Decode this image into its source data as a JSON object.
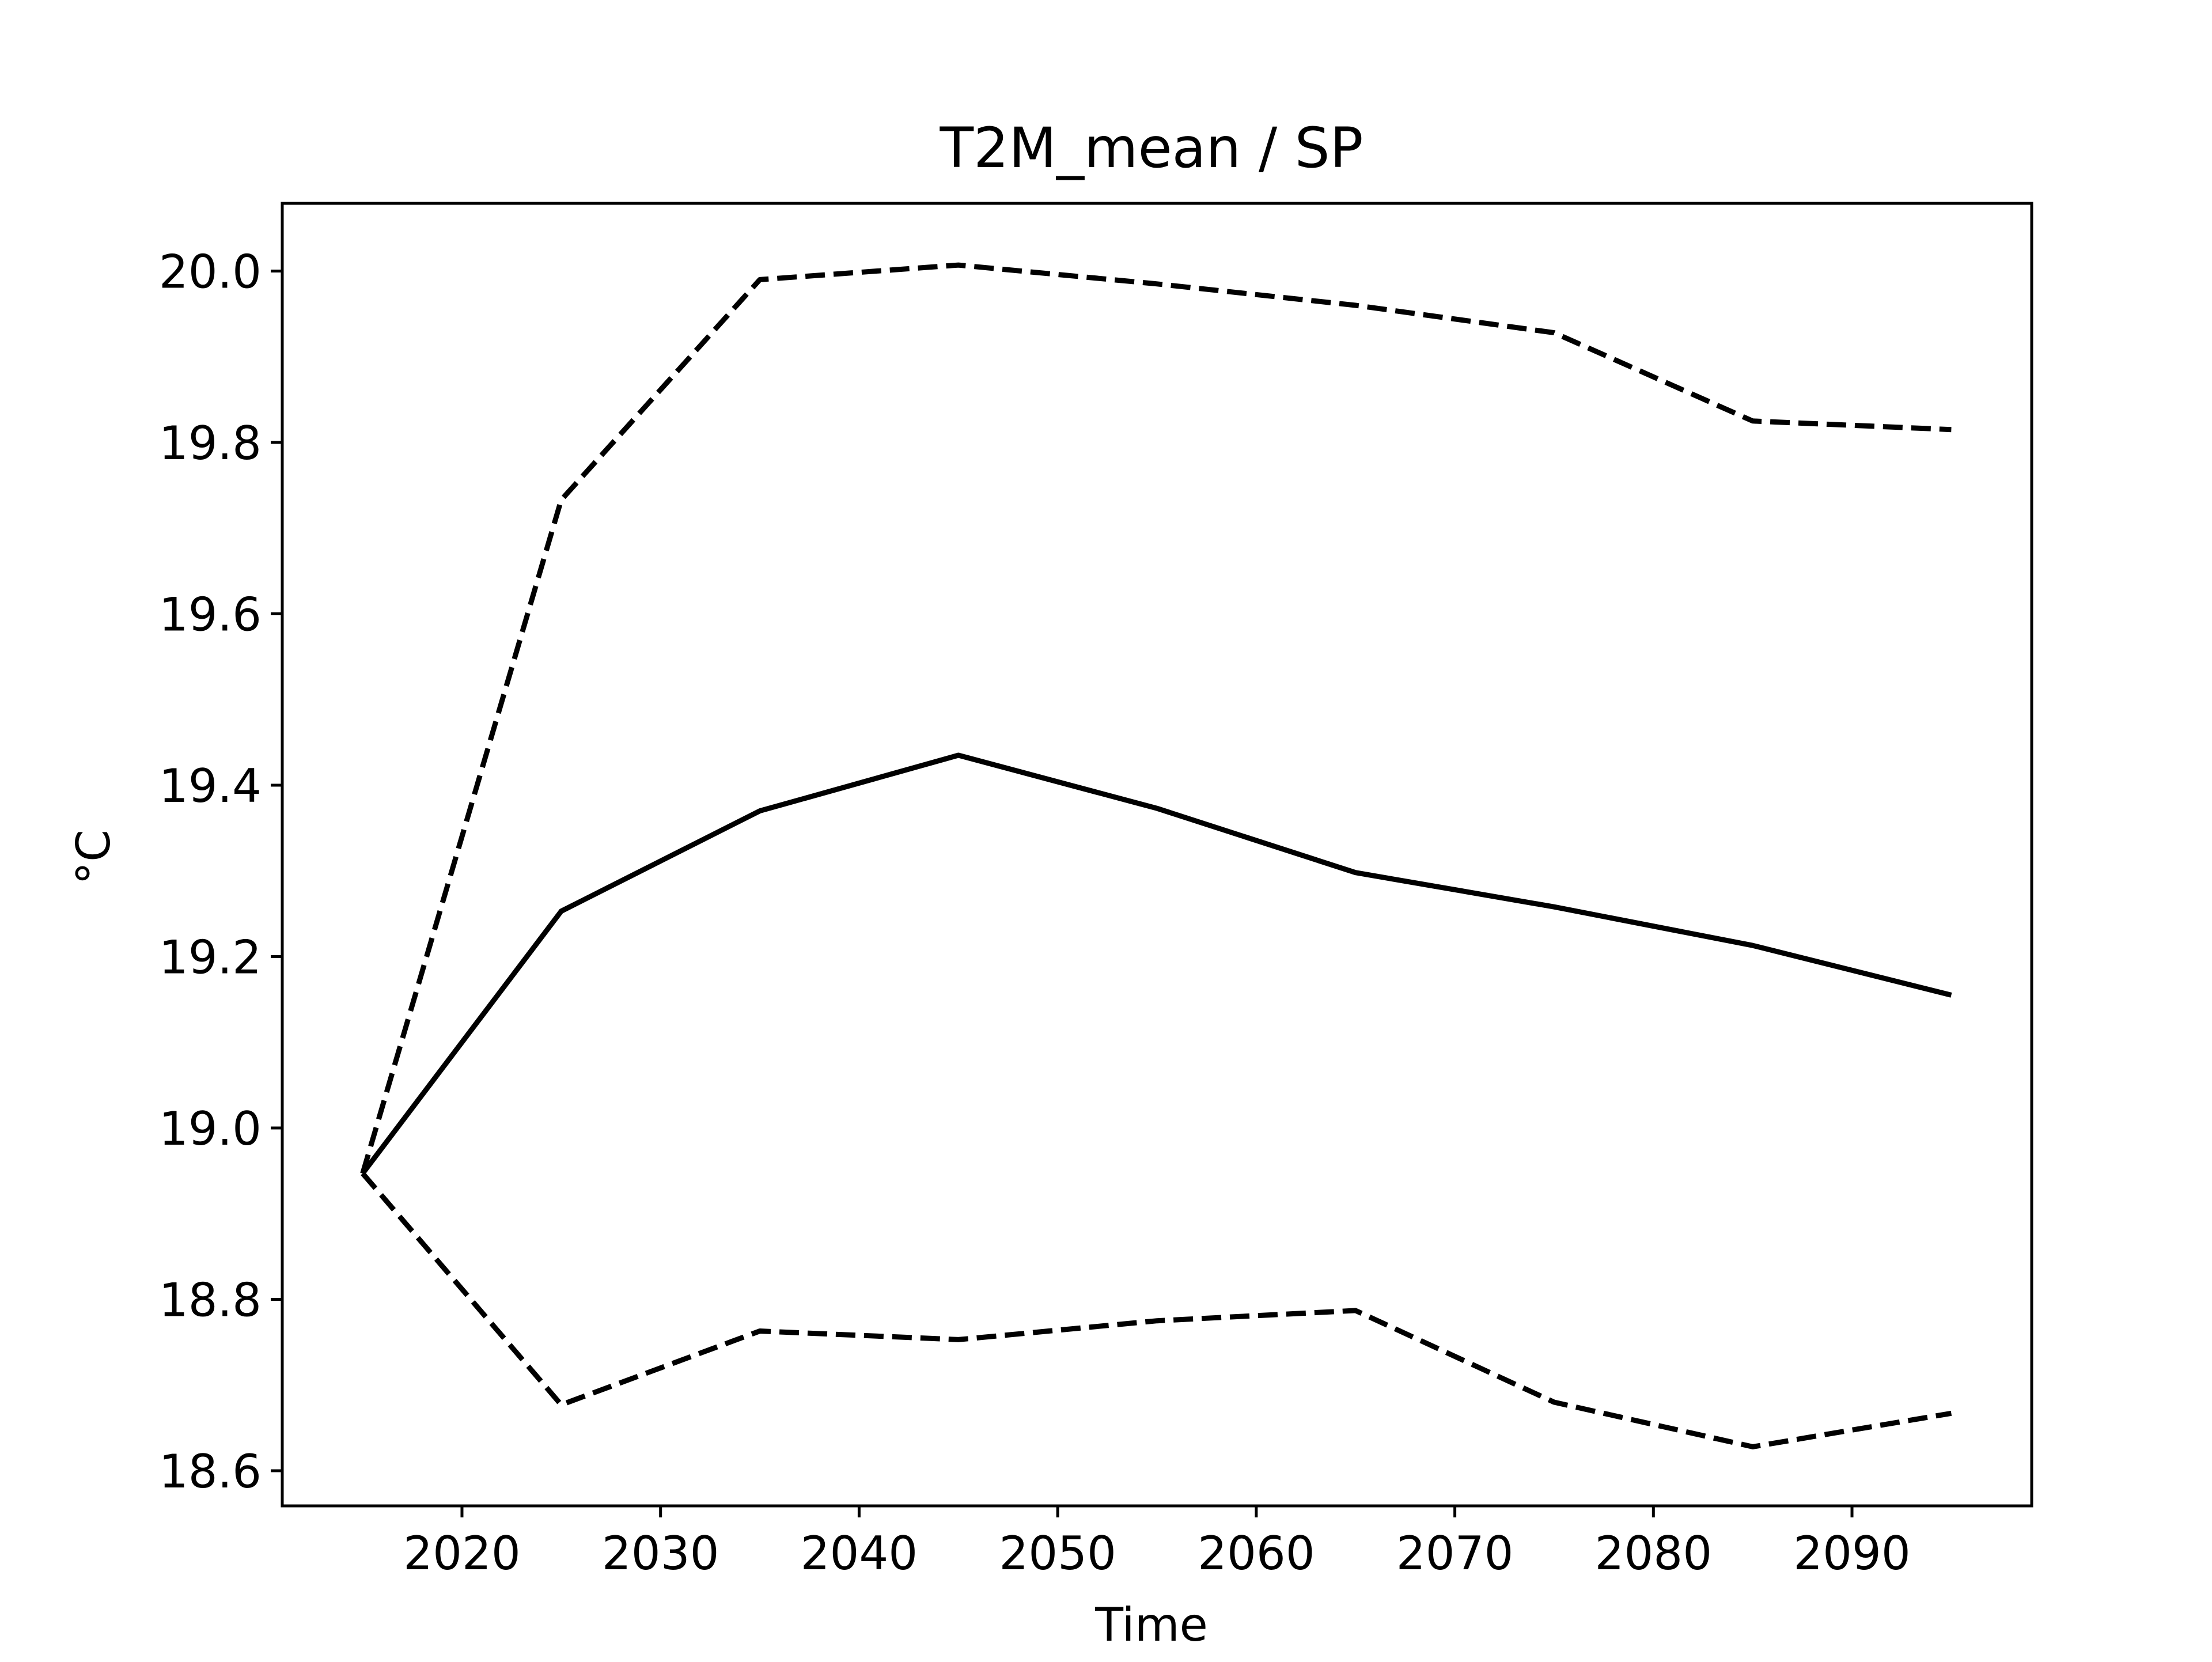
{
  "chart_data": {
    "type": "line",
    "title": "T2M_mean / SP",
    "xlabel": "Time",
    "ylabel": "°C",
    "x": [
      2015,
      2025,
      2035,
      2045,
      2055,
      2065,
      2075,
      2085,
      2095
    ],
    "xlim": [
      2010.95,
      2099.05
    ],
    "ylim": [
      18.559,
      20.079
    ],
    "x_ticks": [
      2020,
      2030,
      2040,
      2050,
      2060,
      2070,
      2080,
      2090
    ],
    "y_ticks": [
      18.6,
      18.8,
      19.0,
      19.2,
      19.4,
      19.6,
      19.8,
      20.0
    ],
    "x_tick_labels": [
      "2020",
      "2030",
      "2040",
      "2050",
      "2060",
      "2070",
      "2080",
      "2090"
    ],
    "y_tick_labels": [
      "18.6",
      "18.8",
      "19.0",
      "19.2",
      "19.4",
      "19.6",
      "19.8",
      "20.0"
    ],
    "grid": false,
    "line_color": "#000000",
    "series": [
      {
        "style": "solid",
        "values": [
          18.947,
          19.253,
          19.37,
          19.435,
          19.373,
          19.298,
          19.258,
          19.213,
          19.155
        ]
      },
      {
        "style": "dashed",
        "values": [
          18.947,
          19.733,
          19.99,
          20.007,
          19.985,
          19.96,
          19.928,
          19.825,
          19.815
        ]
      },
      {
        "style": "dashed",
        "values": [
          18.947,
          18.677,
          18.763,
          18.753,
          18.775,
          18.787,
          18.68,
          18.628,
          18.667
        ]
      }
    ]
  }
}
